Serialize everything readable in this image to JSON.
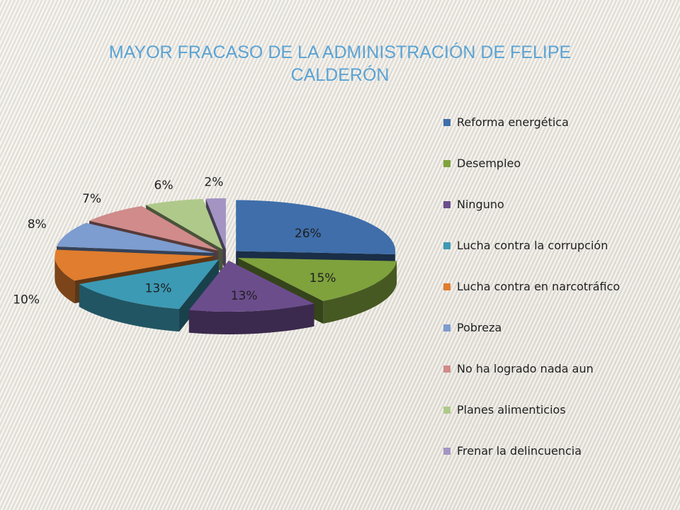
{
  "slide": {
    "title": "MAYOR FRACASO DE LA ADMINISTRACIÓN DE FELIPE CALDERÓN"
  },
  "chart_data": {
    "type": "pie",
    "style": "3d-exploded",
    "title": "MAYOR FRACASO DE LA ADMINISTRACIÓN DE FELIPE CALDERÓN",
    "legend_position": "right",
    "unit": "%",
    "slices": [
      {
        "label": "Reforma energética",
        "value": 26,
        "data_label": "26%",
        "color": "#3f6eaa"
      },
      {
        "label": "Desempleo",
        "value": 15,
        "data_label": "15%",
        "color": "#7fa23d"
      },
      {
        "label": "Ninguno",
        "value": 13,
        "data_label": "13%",
        "color": "#6b4d8c"
      },
      {
        "label": "Lucha contra la corrupción",
        "value": 13,
        "data_label": "13%",
        "color": "#3c9ab4"
      },
      {
        "label": "Lucha contra en narcotráfico",
        "value": 10,
        "data_label": "10%",
        "color": "#e07d2e"
      },
      {
        "label": "Pobreza",
        "value": 8,
        "data_label": "8%",
        "color": "#7d9ccf"
      },
      {
        "label": "No ha logrado nada aun",
        "value": 7,
        "data_label": "7%",
        "color": "#d08b8a"
      },
      {
        "label": "Planes alimenticios",
        "value": 6,
        "data_label": "6%",
        "color": "#afc98a"
      },
      {
        "label": "Frenar la delincuencia",
        "value": 2,
        "data_label": "2%",
        "color": "#a394c4"
      }
    ]
  }
}
